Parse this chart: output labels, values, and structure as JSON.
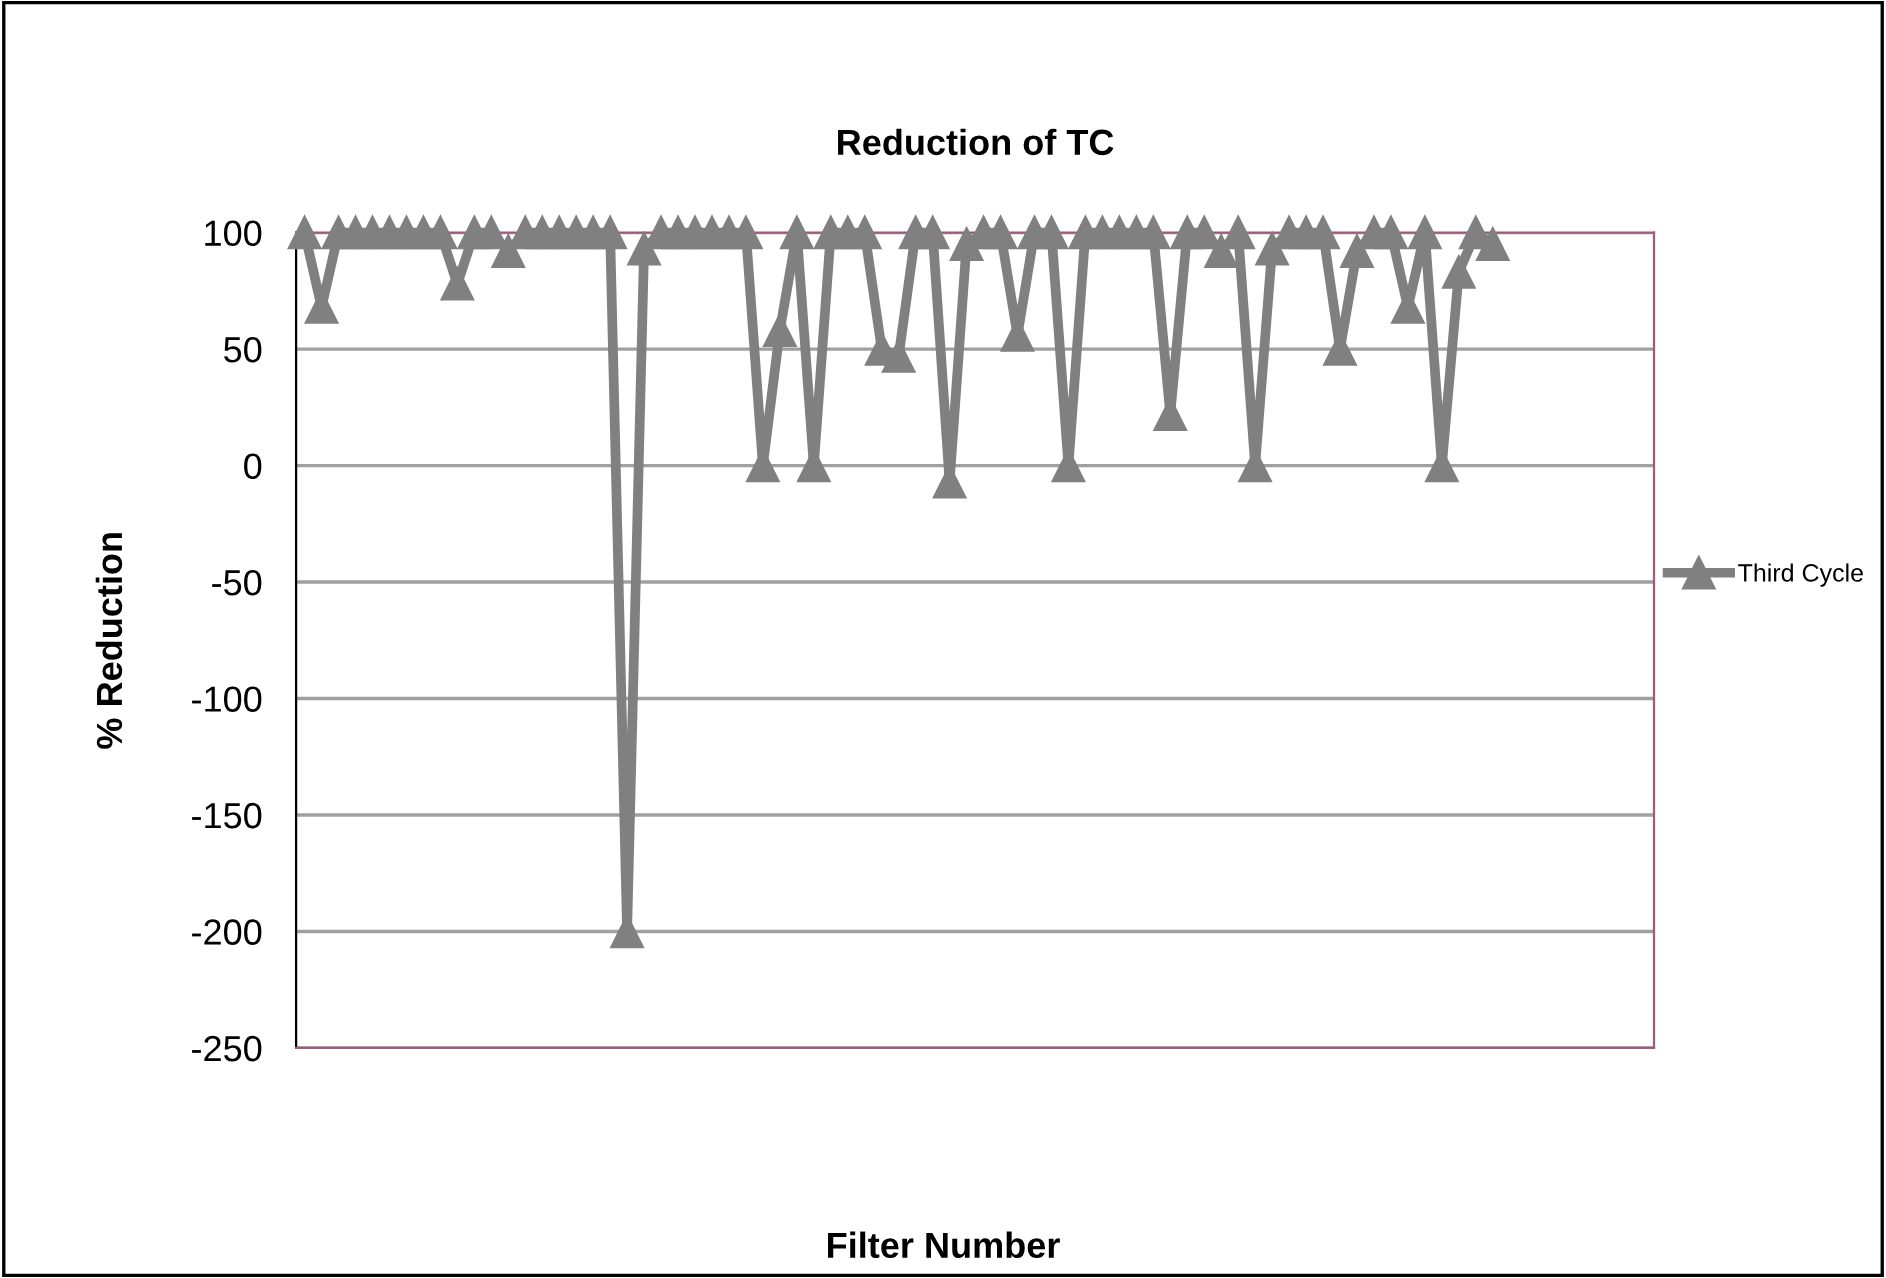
{
  "chart_data": {
    "type": "line",
    "title": "Reduction of TC",
    "xlabel": "Filter Number",
    "ylabel": "% Reduction",
    "categories": [
      null,
      null,
      null,
      null,
      null,
      null,
      null,
      null,
      null,
      null,
      null,
      null,
      null,
      null,
      null,
      null,
      null,
      null,
      null,
      null,
      null,
      null,
      null,
      null,
      null,
      null,
      null,
      null,
      null,
      null,
      null,
      null,
      null,
      null,
      null,
      null,
      null,
      null,
      null,
      null,
      null,
      null,
      null,
      null,
      null,
      null,
      null,
      null,
      null,
      null,
      null,
      null,
      null,
      null,
      null,
      null,
      null,
      null,
      null,
      null,
      null,
      null,
      null,
      null,
      null,
      null,
      null,
      null,
      null,
      null,
      null,
      null,
      null,
      null,
      null,
      null,
      null,
      null,
      null,
      null
    ],
    "series": [
      {
        "name": "Third Cycle",
        "color": "#808080",
        "values": [
          100,
          68,
          100,
          100,
          100,
          100,
          100,
          100,
          100,
          78,
          100,
          100,
          92,
          100,
          100,
          100,
          100,
          100,
          100,
          -200,
          93,
          100,
          100,
          100,
          100,
          100,
          100,
          0,
          58,
          100,
          0,
          100,
          100,
          100,
          50,
          47,
          100,
          100,
          -7,
          95,
          100,
          100,
          56,
          100,
          100,
          0,
          100,
          100,
          100,
          100,
          100,
          22,
          100,
          100,
          92,
          100,
          0,
          93,
          100,
          100,
          100,
          50,
          92,
          100,
          100,
          68,
          100,
          0,
          83,
          100,
          95,
          null,
          null,
          null,
          null,
          null,
          null,
          null,
          null,
          null
        ]
      }
    ],
    "ylim": [
      -250,
      100
    ],
    "yticks": [
      -250,
      -200,
      -150,
      -100,
      -50,
      0,
      50,
      100
    ],
    "grid": "y",
    "legend": "right",
    "marker": "triangle",
    "line_style": "solid"
  }
}
